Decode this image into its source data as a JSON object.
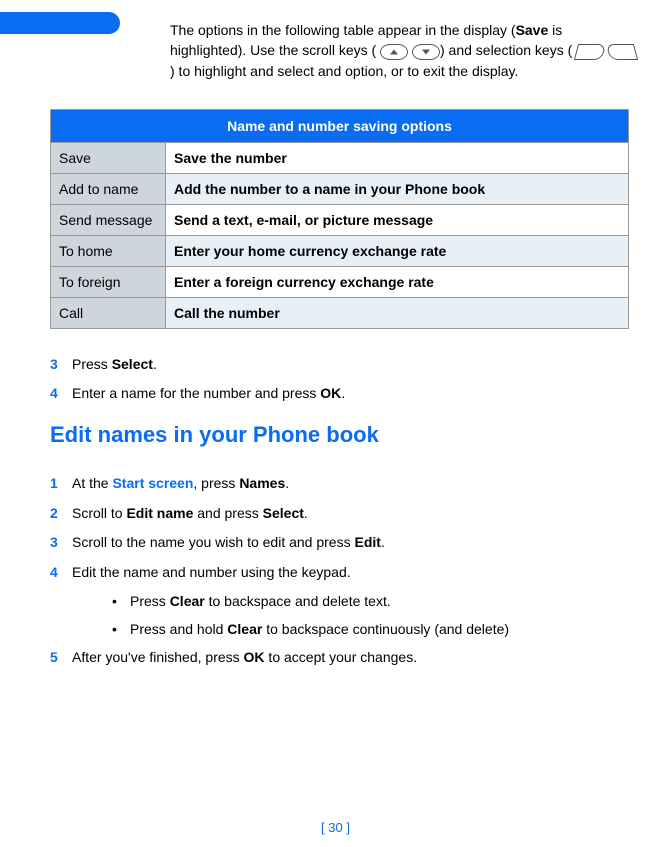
{
  "intro": {
    "part1": "The options in the following table appear in the display (",
    "saveBold": "Save",
    "part2": " is highlighted). Use the scroll keys (",
    "part3": ") and selection keys (",
    "part4": ") to highlight and select and option, or to exit the display."
  },
  "table": {
    "header": "Name and number saving options",
    "rows": [
      {
        "opt": "Save",
        "desc": "Save the number"
      },
      {
        "opt": "Add to name",
        "desc": "Add the number to a name in your Phone book"
      },
      {
        "opt": "Send message",
        "desc": "Send a text, e-mail, or picture message"
      },
      {
        "opt": "To home",
        "desc": "Enter your home currency exchange rate"
      },
      {
        "opt": "To foreign",
        "desc": "Enter a foreign currency exchange rate"
      },
      {
        "opt": "Call",
        "desc": "Call the number"
      }
    ]
  },
  "stepsA": {
    "s3": {
      "num": "3",
      "pre": "Press ",
      "bold": "Select",
      "post": "."
    },
    "s4": {
      "num": "4",
      "pre": "Enter a name for the number and press ",
      "bold": "OK",
      "post": "."
    }
  },
  "heading": "Edit names in your Phone book",
  "stepsB": {
    "s1": {
      "num": "1",
      "pre": "At the ",
      "link": "Start screen",
      "mid": ", press ",
      "bold": "Names",
      "post": "."
    },
    "s2": {
      "num": "2",
      "pre": "Scroll to ",
      "bold": "Edit name",
      "mid": " and press ",
      "bold2": "Select",
      "post": "."
    },
    "s3": {
      "num": "3",
      "pre": "Scroll to the name you wish to edit and press ",
      "bold": "Edit",
      "post": "."
    },
    "s4": {
      "num": "4",
      "text": "Edit the name and number using the keypad."
    },
    "bul1": {
      "pre": "Press ",
      "bold": "Clear",
      "post": " to backspace and delete text."
    },
    "bul2": {
      "pre": "Press and hold ",
      "bold": "Clear",
      "post": " to backspace continuously (and delete)"
    },
    "s5": {
      "num": "5",
      "pre": "After you've finished, press ",
      "bold": "OK",
      "post": " to accept your changes."
    }
  },
  "footer": "[ 30 ]"
}
